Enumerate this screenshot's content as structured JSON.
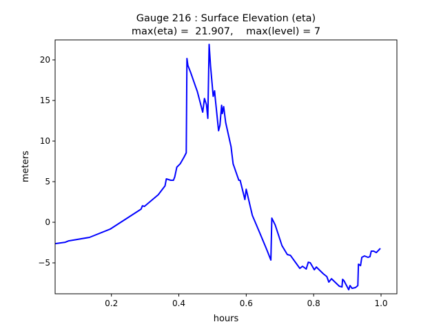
{
  "chart_data": {
    "type": "line",
    "title": "Gauge 216 : Surface Elevation (eta)",
    "subtitle": "max(eta) =  21.907,    max(level) = 7",
    "xlabel": "hours",
    "ylabel": "meters",
    "xlim": [
      0.033,
      1.047
    ],
    "ylim": [
      -8.81,
      22.46
    ],
    "xticks": [
      0.2,
      0.4,
      0.6,
      0.8,
      1.0
    ],
    "xtick_labels": [
      "0.2",
      "0.4",
      "0.6",
      "0.8",
      "1.0"
    ],
    "yticks": [
      -5,
      0,
      5,
      10,
      15,
      20
    ],
    "ytick_labels": [
      "−5",
      "0",
      "5",
      "10",
      "15",
      "20"
    ],
    "grid": false,
    "series": [
      {
        "name": "eta",
        "color": "#0000ff",
        "x": [
          0.033,
          0.063,
          0.073,
          0.135,
          0.196,
          0.237,
          0.288,
          0.292,
          0.298,
          0.339,
          0.359,
          0.363,
          0.376,
          0.384,
          0.388,
          0.394,
          0.404,
          0.416,
          0.422,
          0.424,
          0.427,
          0.435,
          0.447,
          0.455,
          0.471,
          0.476,
          0.482,
          0.486,
          0.49,
          0.494,
          0.502,
          0.506,
          0.508,
          0.518,
          0.522,
          0.527,
          0.529,
          0.533,
          0.539,
          0.555,
          0.561,
          0.578,
          0.582,
          0.596,
          0.6,
          0.618,
          0.639,
          0.661,
          0.673,
          0.676,
          0.686,
          0.706,
          0.722,
          0.731,
          0.747,
          0.759,
          0.767,
          0.778,
          0.784,
          0.79,
          0.802,
          0.808,
          0.829,
          0.839,
          0.845,
          0.853,
          0.876,
          0.884,
          0.886,
          0.89,
          0.904,
          0.908,
          0.914,
          0.924,
          0.931,
          0.933,
          0.939,
          0.943,
          0.951,
          0.961,
          0.967,
          0.971,
          0.978,
          0.986,
          0.998
        ],
        "y": [
          -2.63,
          -2.46,
          -2.29,
          -1.86,
          -0.85,
          0.25,
          1.61,
          2.03,
          1.95,
          3.39,
          4.49,
          5.34,
          5.17,
          5.17,
          5.59,
          6.78,
          7.2,
          8.05,
          8.56,
          20.17,
          19.32,
          18.47,
          17.03,
          16.1,
          13.56,
          15.25,
          14.49,
          12.8,
          21.91,
          19.32,
          15.51,
          16.19,
          15.34,
          11.27,
          11.95,
          14.41,
          13.39,
          14.24,
          12.29,
          9.32,
          7.2,
          5.17,
          5.17,
          2.8,
          4.07,
          0.85,
          -1.19,
          -3.39,
          -4.66,
          0.51,
          -0.34,
          -2.88,
          -3.98,
          -4.07,
          -5.0,
          -5.68,
          -5.42,
          -5.76,
          -4.92,
          -5.0,
          -5.85,
          -5.51,
          -6.36,
          -6.69,
          -7.37,
          -6.95,
          -7.88,
          -7.97,
          -7.03,
          -7.2,
          -8.31,
          -7.8,
          -8.14,
          -8.05,
          -7.8,
          -5.17,
          -5.34,
          -4.32,
          -4.15,
          -4.32,
          -4.24,
          -3.56,
          -3.56,
          -3.73,
          -3.22
        ]
      }
    ]
  }
}
